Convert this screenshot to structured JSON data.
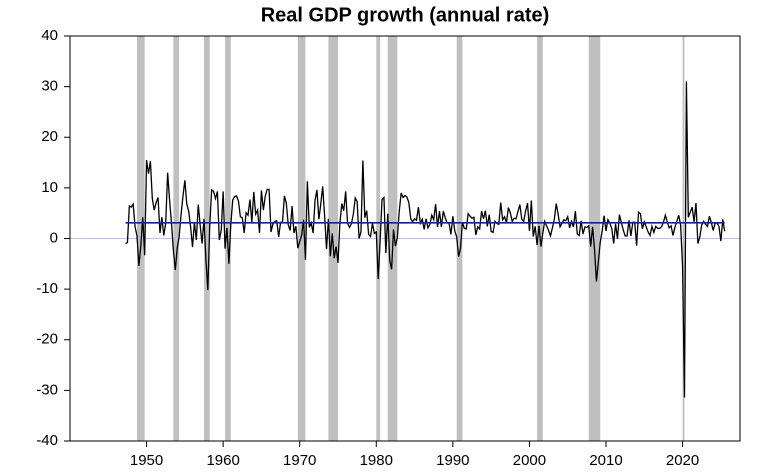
{
  "chart_data": {
    "type": "line",
    "title": "Real GDP growth (annual rate)",
    "x": [
      1947.25,
      1947.5,
      1947.75,
      1948,
      1948.25,
      1948.5,
      1948.75,
      1949,
      1949.25,
      1949.5,
      1949.75,
      1950,
      1950.25,
      1950.5,
      1950.75,
      1951,
      1951.25,
      1951.5,
      1951.75,
      1952,
      1952.25,
      1952.5,
      1952.75,
      1953,
      1953.25,
      1953.5,
      1953.75,
      1954,
      1954.25,
      1954.5,
      1954.75,
      1955,
      1955.25,
      1955.5,
      1955.75,
      1956,
      1956.25,
      1956.5,
      1956.75,
      1957,
      1957.25,
      1957.5,
      1957.75,
      1958,
      1958.25,
      1958.5,
      1958.75,
      1959,
      1959.25,
      1959.5,
      1959.75,
      1960,
      1960.25,
      1960.5,
      1960.75,
      1961,
      1961.25,
      1961.5,
      1961.75,
      1962,
      1962.25,
      1962.5,
      1962.75,
      1963,
      1963.25,
      1963.5,
      1963.75,
      1964,
      1964.25,
      1964.5,
      1964.75,
      1965,
      1965.25,
      1965.5,
      1965.75,
      1966,
      1966.25,
      1966.5,
      1966.75,
      1967,
      1967.25,
      1967.5,
      1967.75,
      1968,
      1968.25,
      1968.5,
      1968.75,
      1969,
      1969.25,
      1969.5,
      1969.75,
      1970,
      1970.25,
      1970.5,
      1970.75,
      1971,
      1971.25,
      1971.5,
      1971.75,
      1972,
      1972.25,
      1972.5,
      1972.75,
      1973,
      1973.25,
      1973.5,
      1973.75,
      1974,
      1974.25,
      1974.5,
      1974.75,
      1975,
      1975.25,
      1975.5,
      1975.75,
      1976,
      1976.25,
      1976.5,
      1976.75,
      1977,
      1977.25,
      1977.5,
      1977.75,
      1978,
      1978.25,
      1978.5,
      1978.75,
      1979,
      1979.25,
      1979.5,
      1979.75,
      1980,
      1980.25,
      1980.5,
      1980.75,
      1981,
      1981.25,
      1981.5,
      1981.75,
      1982,
      1982.25,
      1982.5,
      1982.75,
      1983,
      1983.25,
      1983.5,
      1983.75,
      1984,
      1984.25,
      1984.5,
      1984.75,
      1985,
      1985.25,
      1985.5,
      1985.75,
      1986,
      1986.25,
      1986.5,
      1986.75,
      1987,
      1987.25,
      1987.5,
      1987.75,
      1988,
      1988.25,
      1988.5,
      1988.75,
      1989,
      1989.25,
      1989.5,
      1989.75,
      1990,
      1990.25,
      1990.5,
      1990.75,
      1991,
      1991.25,
      1991.5,
      1991.75,
      1992,
      1992.25,
      1992.5,
      1992.75,
      1993,
      1993.25,
      1993.5,
      1993.75,
      1994,
      1994.25,
      1994.5,
      1994.75,
      1995,
      1995.25,
      1995.5,
      1995.75,
      1996,
      1996.25,
      1996.5,
      1996.75,
      1997,
      1997.25,
      1997.5,
      1997.75,
      1998,
      1998.25,
      1998.5,
      1998.75,
      1999,
      1999.25,
      1999.5,
      1999.75,
      2000,
      2000.25,
      2000.5,
      2000.75,
      2001,
      2001.25,
      2001.5,
      2001.75,
      2002,
      2002.25,
      2002.5,
      2002.75,
      2003,
      2003.25,
      2003.5,
      2003.75,
      2004,
      2004.25,
      2004.5,
      2004.75,
      2005,
      2005.25,
      2005.5,
      2005.75,
      2006,
      2006.25,
      2006.5,
      2006.75,
      2007,
      2007.25,
      2007.5,
      2007.75,
      2008,
      2008.25,
      2008.5,
      2008.75,
      2009,
      2009.25,
      2009.5,
      2009.75,
      2010,
      2010.25,
      2010.5,
      2010.75,
      2011,
      2011.25,
      2011.5,
      2011.75,
      2012,
      2012.25,
      2012.5,
      2012.75,
      2013,
      2013.25,
      2013.5,
      2013.75,
      2014,
      2014.25,
      2014.5,
      2014.75,
      2015,
      2015.25,
      2015.5,
      2015.75,
      2016,
      2016.25,
      2016.5,
      2016.75,
      2017,
      2017.25,
      2017.5,
      2017.75,
      2018,
      2018.25,
      2018.5,
      2018.75,
      2019,
      2019.25,
      2019.5,
      2019.75,
      2020,
      2020.25,
      2020.5,
      2020.75,
      2021,
      2021.25,
      2021.5,
      2021.75,
      2022,
      2022.25,
      2022.5,
      2022.75,
      2023,
      2023.25,
      2023.5,
      2023.75,
      2024,
      2024.25,
      2024.5,
      2024.75,
      2025,
      2025.25,
      2025.5
    ],
    "values": [
      -1.0,
      -0.8,
      6.4,
      6.2,
      6.8,
      2.3,
      0.5,
      -5.4,
      -1.4,
      4.2,
      -3.3,
      15.5,
      12.8,
      15.3,
      7.9,
      5.6,
      7.1,
      8.1,
      1.1,
      4.2,
      0.6,
      3.0,
      13.0,
      7.7,
      3.1,
      -2.3,
      -6.2,
      -1.9,
      0.3,
      4.6,
      8.3,
      11.5,
      6.8,
      5.4,
      2.3,
      -1.7,
      3.2,
      -0.3,
      6.7,
      2.6,
      -1.0,
      3.9,
      -4.1,
      -10.2,
      2.6,
      9.6,
      9.3,
      7.9,
      9.3,
      -0.3,
      1.6,
      9.3,
      -2.0,
      2.1,
      -5.0,
      2.7,
      7.6,
      8.3,
      8.4,
      7.4,
      4.3,
      4.1,
      1.1,
      5.1,
      4.6,
      7.7,
      3.2,
      9.2,
      4.8,
      5.6,
      1.1,
      9.5,
      5.6,
      8.4,
      9.7,
      9.7,
      1.3,
      2.9,
      3.4,
      3.5,
      0.3,
      3.2,
      3.2,
      8.4,
      7.0,
      2.7,
      1.6,
      6.4,
      1.1,
      2.4,
      -1.9,
      -0.6,
      0.6,
      3.7,
      -4.2,
      11.3,
      2.2,
      3.1,
      1.1,
      7.5,
      9.6,
      3.8,
      6.8,
      10.3,
      4.5,
      -2.1,
      3.9,
      -3.5,
      1.0,
      -3.9,
      -1.6,
      -4.8,
      3.1,
      6.9,
      5.5,
      9.3,
      3.0,
      2.2,
      2.9,
      4.8,
      8.0,
      7.3,
      0.0,
      1.3,
      15.4,
      4.1,
      5.5,
      0.8,
      0.4,
      3.0,
      1.0,
      1.3,
      -8.0,
      -0.5,
      7.7,
      8.1,
      -2.9,
      4.9,
      -4.3,
      -6.1,
      1.8,
      -1.5,
      0.2,
      5.4,
      9.0,
      8.1,
      8.5,
      8.2,
      7.1,
      3.9,
      3.3,
      3.9,
      3.6,
      6.2,
      3.0,
      3.8,
      1.8,
      3.9,
      2.1,
      2.8,
      4.6,
      3.7,
      6.8,
      2.3,
      5.4,
      2.3,
      5.4,
      4.1,
      3.1,
      3.0,
      0.8,
      4.4,
      1.5,
      0.3,
      -3.6,
      -1.9,
      3.2,
      2.0,
      1.9,
      4.9,
      4.4,
      4.0,
      4.2,
      0.7,
      2.3,
      1.9,
      5.4,
      3.9,
      5.5,
      2.4,
      4.7,
      1.4,
      1.2,
      3.4,
      3.0,
      2.8,
      7.1,
      3.7,
      4.3,
      3.1,
      6.1,
      5.1,
      3.4,
      4.0,
      3.9,
      5.3,
      6.7,
      3.8,
      3.4,
      5.4,
      7.0,
      1.5,
      7.5,
      0.4,
      2.4,
      -1.3,
      2.5,
      -1.6,
      1.1,
      3.4,
      2.5,
      1.6,
      0.5,
      2.1,
      3.8,
      6.9,
      4.8,
      2.3,
      3.0,
      3.7,
      3.5,
      4.3,
      2.1,
      3.4,
      2.3,
      5.4,
      0.9,
      0.6,
      3.5,
      0.9,
      2.3,
      2.2,
      2.5,
      -1.6,
      2.3,
      -2.1,
      -8.5,
      -4.6,
      -0.7,
      1.5,
      4.5,
      1.5,
      3.7,
      3.0,
      2.0,
      -1.0,
      2.9,
      -0.1,
      4.7,
      3.2,
      1.7,
      0.5,
      0.5,
      3.6,
      0.5,
      3.2,
      3.2,
      -1.4,
      5.2,
      4.9,
      1.9,
      3.3,
      2.3,
      1.3,
      0.6,
      2.4,
      1.2,
      2.4,
      2.0,
      2.0,
      2.3,
      3.2,
      4.6,
      3.3,
      2.1,
      2.5,
      0.6,
      2.2,
      3.4,
      4.6,
      2.6,
      -5.5,
      -31.4,
      31.0,
      4.2,
      5.2,
      6.2,
      3.3,
      7.0,
      -1.0,
      0.3,
      2.7,
      3.4,
      2.8,
      2.4,
      4.4,
      3.2,
      1.6,
      3.0,
      3.1,
      2.4,
      -0.5,
      3.8,
      1.4
    ],
    "color": "#000000",
    "mean": 3.1,
    "mean_color": "#1a1aa6",
    "zero_line": true,
    "zero_color": "#b8c4e8",
    "recessions": [
      [
        1948.75,
        1949.75
      ],
      [
        1953.5,
        1954.25
      ],
      [
        1957.5,
        1958.25
      ],
      [
        1960.25,
        1961
      ],
      [
        1969.75,
        1970.75
      ],
      [
        1973.75,
        1975
      ],
      [
        1980,
        1980.5
      ],
      [
        1981.5,
        1982.75
      ],
      [
        1990.5,
        1991.25
      ],
      [
        2001,
        2001.75
      ],
      [
        2007.75,
        2009.25
      ],
      [
        2020,
        2020.25
      ]
    ],
    "recession_color": "#c0c0c0",
    "xlim": [
      1940,
      2027.5
    ],
    "xticks": [
      1950,
      1960,
      1970,
      1980,
      1990,
      2000,
      2010,
      2020
    ],
    "ylim": [
      -40,
      40
    ],
    "yticks": [
      -40,
      -30,
      -20,
      -10,
      0,
      10,
      20,
      30,
      40
    ]
  }
}
